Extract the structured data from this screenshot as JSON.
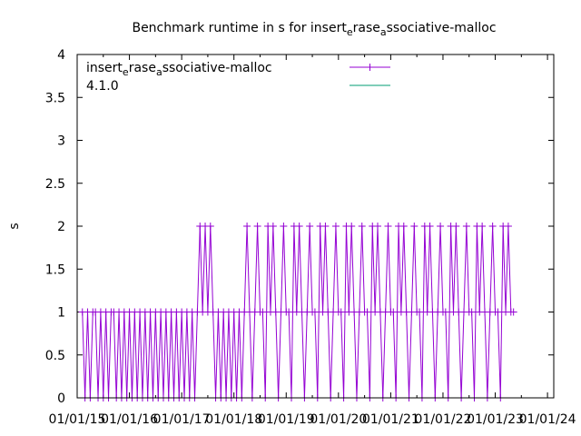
{
  "chart_data": {
    "type": "line",
    "title_parts": [
      "Benchmark runtime in s for insert",
      "e",
      "rase",
      "a",
      "ssociative-malloc"
    ],
    "xlabel": "",
    "ylabel": "s",
    "xlim": [
      2015.0,
      2024.12
    ],
    "ylim": [
      0,
      4
    ],
    "x_ticks": [
      {
        "value": 2015,
        "label": "01/01/15"
      },
      {
        "value": 2016,
        "label": "01/01/16"
      },
      {
        "value": 2017,
        "label": "01/01/17"
      },
      {
        "value": 2018,
        "label": "01/01/18"
      },
      {
        "value": 2019,
        "label": "01/01/19"
      },
      {
        "value": 2020,
        "label": "01/01/20"
      },
      {
        "value": 2021,
        "label": "01/01/21"
      },
      {
        "value": 2022,
        "label": "01/01/22"
      },
      {
        "value": 2023,
        "label": "01/01/23"
      },
      {
        "value": 2024,
        "label": "01/01/24"
      }
    ],
    "y_ticks": [
      {
        "value": 0,
        "label": "0"
      },
      {
        "value": 0.5,
        "label": "0.5"
      },
      {
        "value": 1,
        "label": "1"
      },
      {
        "value": 1.5,
        "label": "1.5"
      },
      {
        "value": 2,
        "label": "2"
      },
      {
        "value": 2.5,
        "label": "2.5"
      },
      {
        "value": 3,
        "label": "3"
      },
      {
        "value": 3.5,
        "label": "3.5"
      },
      {
        "value": 4,
        "label": "4"
      }
    ],
    "grid": false,
    "legend_placement": "top-left",
    "series": [
      {
        "name_parts": [
          "insert",
          "e",
          "rase",
          "a",
          "ssociative-malloc"
        ],
        "color": "#9400d3",
        "marker": "plus",
        "x_start": 2015.1,
        "x_step": 0.05,
        "values": [
          1,
          0,
          1,
          0,
          1,
          1,
          0,
          1,
          0,
          1,
          0,
          1,
          1,
          0,
          1,
          0,
          1,
          0,
          1,
          0,
          1,
          0,
          1,
          0,
          1,
          0,
          1,
          0,
          1,
          0,
          1,
          0,
          1,
          0,
          1,
          0,
          1,
          0,
          1,
          0,
          1,
          0,
          1,
          0,
          1,
          2,
          1,
          2,
          1,
          2,
          1,
          0,
          1,
          0,
          1,
          0,
          1,
          0,
          1,
          0,
          1,
          0,
          1,
          2,
          1,
          0,
          1,
          2,
          1,
          1,
          0,
          2,
          1,
          2,
          1,
          0,
          1,
          2,
          1,
          1,
          0,
          2,
          1,
          2,
          1,
          0,
          1,
          2,
          1,
          1,
          0,
          2,
          1,
          2,
          1,
          0,
          1,
          2,
          1,
          1,
          0,
          2,
          1,
          2,
          1,
          0,
          1,
          2,
          1,
          1,
          0,
          2,
          1,
          2,
          1,
          0,
          1,
          2,
          1,
          1,
          0,
          2,
          1,
          2,
          1,
          0,
          1,
          2,
          1,
          1,
          0,
          2,
          1,
          2,
          1,
          0,
          1,
          2,
          1,
          1,
          0,
          2,
          1,
          2,
          1,
          0,
          1,
          2,
          1,
          1,
          0,
          2,
          1,
          2,
          1,
          0,
          1,
          2,
          1,
          1,
          0,
          2,
          1,
          2,
          1,
          1
        ]
      },
      {
        "name": "4.1.0",
        "color": "#009e73",
        "marker": "none",
        "values": []
      }
    ]
  }
}
